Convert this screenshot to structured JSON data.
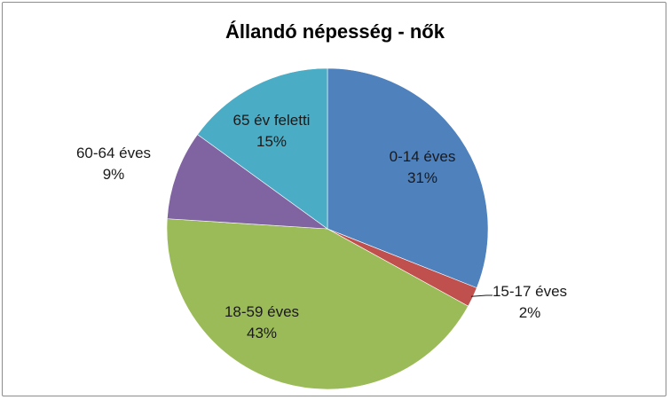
{
  "chart_data": {
    "type": "pie",
    "title": "Állandó népesség - nők",
    "slices": [
      {
        "label": "0-14 éves",
        "value": 31,
        "value_label": "31%",
        "color": "#4F81BD"
      },
      {
        "label": "15-17 éves",
        "value": 2,
        "value_label": "2%",
        "color": "#C0504D"
      },
      {
        "label": "18-59 éves",
        "value": 43,
        "value_label": "43%",
        "color": "#9BBB59"
      },
      {
        "label": "60-64 éves",
        "value": 9,
        "value_label": "9%",
        "color": "#8064A2"
      },
      {
        "label": "65 év feletti",
        "value": 15,
        "value_label": "15%",
        "color": "#4BACC6"
      }
    ],
    "legend": "none",
    "start": "12 o'clock",
    "direction": "clockwise"
  }
}
